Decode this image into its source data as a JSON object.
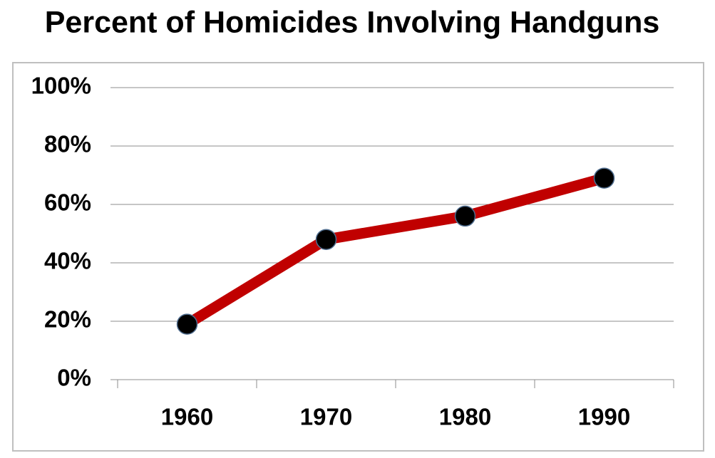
{
  "chart_data": {
    "type": "line",
    "title": "Percent of Homicides Involving Handguns",
    "categories": [
      "1960",
      "1970",
      "1980",
      "1990"
    ],
    "values": [
      19,
      48,
      56,
      69
    ],
    "color": "#c00000",
    "marker_color": "#000000",
    "ylim": [
      0,
      100
    ],
    "yticks": [
      {
        "value": 0,
        "label": "0%"
      },
      {
        "value": 20,
        "label": "20%"
      },
      {
        "value": 40,
        "label": "40%"
      },
      {
        "value": 60,
        "label": "60%"
      },
      {
        "value": 80,
        "label": "80%"
      },
      {
        "value": 100,
        "label": "100%"
      }
    ],
    "grid": true
  }
}
